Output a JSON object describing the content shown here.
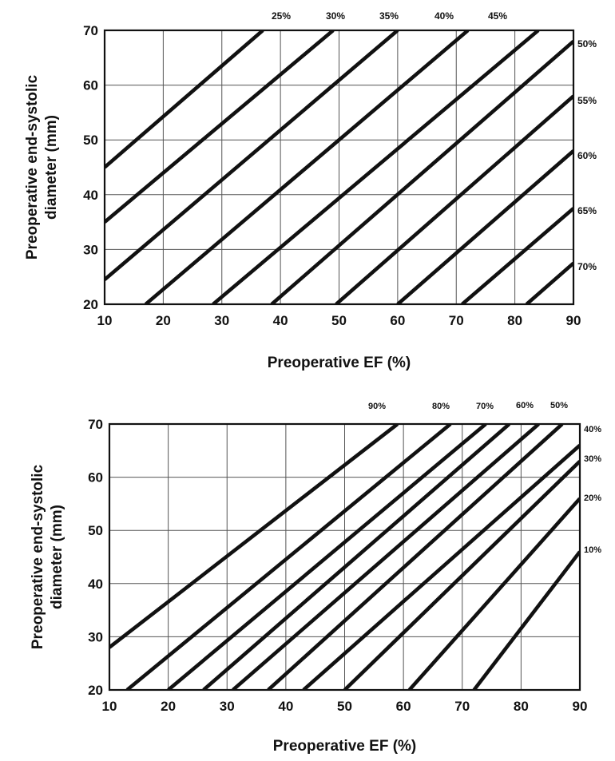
{
  "chart_data": [
    {
      "type": "line",
      "xlabel": "Preoperative EF (%)",
      "ylabel": "Preoperative end-systolic diameter (mm)",
      "xlim": [
        10,
        90
      ],
      "ylim": [
        20,
        70
      ],
      "xticks": [
        "10",
        "20",
        "30",
        "40",
        "50",
        "60",
        "70",
        "80",
        "90"
      ],
      "yticks": [
        "20",
        "30",
        "40",
        "50",
        "60",
        "70"
      ],
      "grid": true,
      "series": [
        {
          "name": "25%",
          "points": [
            [
              10,
              45
            ],
            [
              37,
              70
            ]
          ]
        },
        {
          "name": "30%",
          "points": [
            [
              10,
              35
            ],
            [
              49,
              70
            ]
          ]
        },
        {
          "name": "35%",
          "points": [
            [
              10,
              24.5
            ],
            [
              60,
              70
            ]
          ]
        },
        {
          "name": "40%",
          "points": [
            [
              17,
              20
            ],
            [
              72,
              70
            ]
          ]
        },
        {
          "name": "45%",
          "points": [
            [
              28.5,
              20
            ],
            [
              84,
              70
            ]
          ]
        },
        {
          "name": "50%",
          "points": [
            [
              38.5,
              20
            ],
            [
              90,
              68
            ]
          ]
        },
        {
          "name": "55%",
          "points": [
            [
              49.5,
              20
            ],
            [
              90,
              58
            ]
          ]
        },
        {
          "name": "60%",
          "points": [
            [
              60,
              20
            ],
            [
              90,
              48
            ]
          ]
        },
        {
          "name": "65%",
          "points": [
            [
              71,
              20
            ],
            [
              90,
              37.5
            ]
          ]
        },
        {
          "name": "70%",
          "points": [
            [
              82,
              20
            ],
            [
              90,
              27.5
            ]
          ]
        }
      ]
    },
    {
      "type": "line",
      "xlabel": "Preoperative EF (%)",
      "ylabel": "Preoperative end-systolic diameter (mm)",
      "xlim": [
        10,
        90
      ],
      "ylim": [
        20,
        70
      ],
      "xticks": [
        "10",
        "20",
        "30",
        "40",
        "50",
        "60",
        "70",
        "80",
        "90"
      ],
      "yticks": [
        "20",
        "30",
        "40",
        "50",
        "60",
        "70"
      ],
      "grid": true,
      "series": [
        {
          "name": "90%",
          "points": [
            [
              10,
              28
            ],
            [
              59,
              70
            ]
          ]
        },
        {
          "name": "80%",
          "points": [
            [
              13,
              20
            ],
            [
              68,
              70
            ]
          ]
        },
        {
          "name": "70%",
          "points": [
            [
              20,
              20
            ],
            [
              74,
              70
            ]
          ]
        },
        {
          "name": "",
          "points": [
            [
              26,
              20
            ],
            [
              78,
              70
            ]
          ]
        },
        {
          "name": "60%",
          "points": [
            [
              31,
              20
            ],
            [
              83,
              70
            ]
          ]
        },
        {
          "name": "50%",
          "points": [
            [
              37,
              20
            ],
            [
              87,
              70
            ]
          ]
        },
        {
          "name": "40%",
          "points": [
            [
              43,
              20
            ],
            [
              90,
              66
            ]
          ]
        },
        {
          "name": "30%",
          "points": [
            [
              50,
              20
            ],
            [
              90,
              63
            ]
          ]
        },
        {
          "name": "20%",
          "points": [
            [
              61,
              20
            ],
            [
              90,
              56
            ]
          ]
        },
        {
          "name": "10%",
          "points": [
            [
              72,
              20
            ],
            [
              90,
              46
            ]
          ]
        }
      ]
    }
  ]
}
